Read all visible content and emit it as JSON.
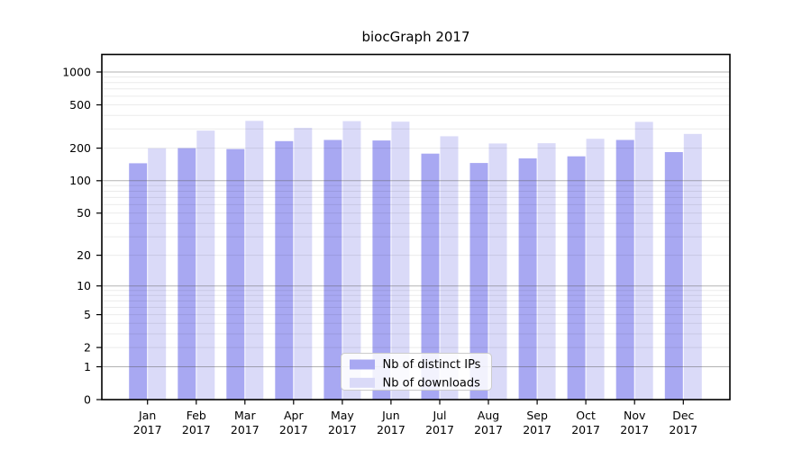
{
  "chart_data": {
    "type": "bar",
    "title": "biocGraph 2017",
    "scale": "log1p",
    "grid": "both",
    "legend_position": "bottom-center",
    "categories": [
      "Jan",
      "Feb",
      "Mar",
      "Apr",
      "May",
      "Jun",
      "Jul",
      "Aug",
      "Sep",
      "Oct",
      "Nov",
      "Dec"
    ],
    "xtick_year": "2017",
    "yticks": [
      1000,
      500,
      200,
      100,
      50,
      20,
      10,
      5,
      2,
      1,
      0
    ],
    "ylim": [
      0,
      1000
    ],
    "series": [
      {
        "name": "Nb of distinct IPs",
        "color": "#a8a8f2",
        "values": [
          145,
          200,
          196,
          232,
          238,
          235,
          178,
          146,
          161,
          168,
          238,
          184
        ]
      },
      {
        "name": "Nb of downloads",
        "color": "#dadaf8",
        "values": [
          199,
          290,
          356,
          307,
          354,
          350,
          257,
          221,
          222,
          244,
          349,
          270
        ]
      }
    ]
  },
  "colors": {
    "ips_bar": "#a8a8f2",
    "downloads_bar": "#dadaf8",
    "major_grid": "#b3b3b3",
    "minor_grid": "#e9e9e9",
    "axis": "#000000",
    "legend_border": "#cccccc"
  }
}
